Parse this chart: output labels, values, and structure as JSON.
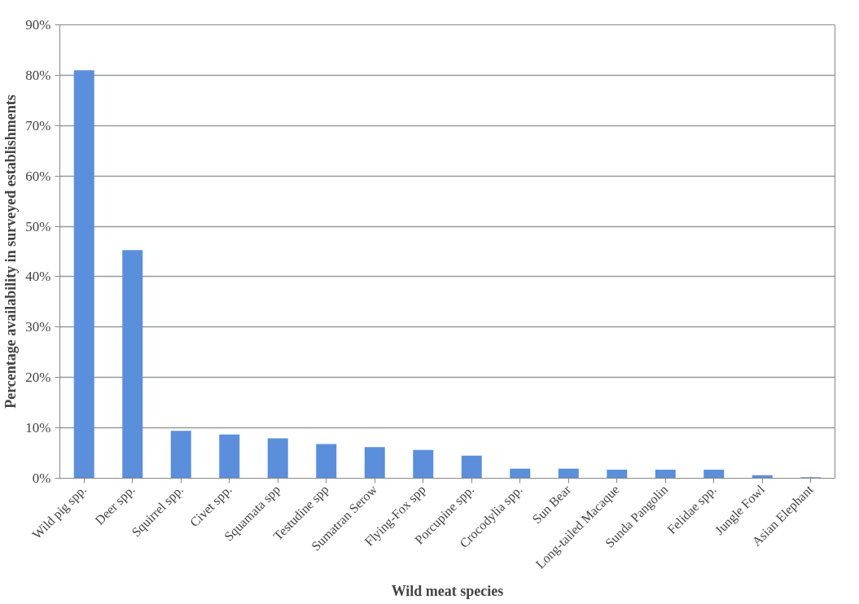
{
  "chart_data": {
    "type": "bar",
    "xlabel": "Wild meat species",
    "ylabel": "Percentage availability in surveyed establishments",
    "categories": [
      "Wild pig spp.",
      "Deer spp.",
      "Squirrel spp.",
      "Civet spp.",
      "Squamata spp",
      "Testudine spp",
      "Sumatran Serow",
      "Flying-Fox spp",
      "Porcupine spp.",
      "Crocodylia spp.",
      "Sun Bear",
      "Long-tailed Macaque",
      "Sunda Pangolin",
      "Felidae spp.",
      "Jungle Fowl",
      "Asian Elephant"
    ],
    "values": [
      81,
      45.3,
      9.4,
      8.7,
      7.9,
      6.8,
      6.2,
      5.6,
      4.5,
      1.9,
      1.9,
      1.7,
      1.7,
      1.7,
      0.6,
      0.2
    ],
    "color": "#5b8fdc",
    "ylim": [
      0,
      90
    ],
    "yticks": [
      {
        "value": 0,
        "label": "0%"
      },
      {
        "value": 10,
        "label": "10%"
      },
      {
        "value": 20,
        "label": "20%"
      },
      {
        "value": 30,
        "label": "30%"
      },
      {
        "value": 40,
        "label": "40%"
      },
      {
        "value": 50,
        "label": "50%"
      },
      {
        "value": 60,
        "label": "60%"
      },
      {
        "value": 70,
        "label": "70%"
      },
      {
        "value": 80,
        "label": "80%"
      },
      {
        "value": 90,
        "label": "90%"
      }
    ],
    "grid": "y"
  }
}
